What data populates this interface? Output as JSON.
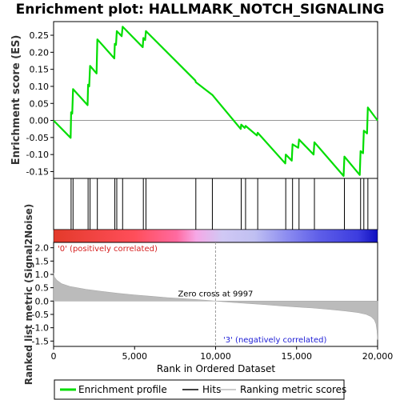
{
  "chart_data": {
    "type": "line",
    "title": "Enrichment plot: HALLMARK_NOTCH_SIGNALING",
    "xlabel": "Rank in Ordered Dataset",
    "ylabel_top": "Enrichment score (ES)",
    "ylabel_bottom": "Ranked list metric (Signal2Noise)",
    "xlim": [
      0,
      20000
    ],
    "x_ticks": [
      0,
      5000,
      10000,
      15000,
      20000
    ],
    "x_tick_labels": [
      "0",
      "5,000",
      "10,000",
      "15,000",
      "20,000"
    ],
    "es_ylim": [
      -0.17,
      0.29
    ],
    "es_ticks": [
      0.25,
      0.2,
      0.15,
      0.1,
      0.05,
      0.0,
      -0.05,
      -0.1,
      -0.15
    ],
    "es_tick_labels": [
      "0.25",
      "0.20",
      "0.15",
      "0.10",
      "0.05",
      "0.00",
      "-0.05",
      "-0.10",
      "-0.15"
    ],
    "metric_ylim": [
      -1.7,
      2.2
    ],
    "metric_ticks": [
      2.0,
      1.5,
      1.0,
      0.5,
      0.0,
      -0.5,
      -1.0,
      -1.5
    ],
    "metric_tick_labels": [
      "2.0",
      "1.5",
      "1.0",
      "0.5",
      "0.0",
      "-0.5",
      "-1.0",
      "-1.5"
    ],
    "enrichment_profile": {
      "name": "Enrichment profile",
      "color": "#00dd00",
      "x": [
        0,
        1050,
        1080,
        1150,
        1200,
        2100,
        2130,
        2200,
        2250,
        2650,
        2700,
        3750,
        3780,
        3850,
        3900,
        4200,
        4260,
        5500,
        5540,
        5650,
        5700,
        8750,
        8780,
        9800,
        11550,
        11580,
        11800,
        11850,
        12550,
        12600,
        14300,
        14330,
        14700,
        14750,
        15100,
        15150,
        16050,
        16100,
        17900,
        17950,
        18900,
        18950,
        19100,
        19150,
        19350,
        19400,
        20000
      ],
      "y": [
        0.0,
        -0.051,
        0.024,
        0.02,
        0.092,
        0.045,
        0.105,
        0.1,
        0.16,
        0.138,
        0.238,
        0.182,
        0.225,
        0.222,
        0.262,
        0.247,
        0.275,
        0.215,
        0.242,
        0.236,
        0.262,
        0.117,
        0.112,
        0.075,
        -0.025,
        -0.012,
        -0.022,
        -0.016,
        -0.044,
        -0.036,
        -0.126,
        -0.1,
        -0.118,
        -0.07,
        -0.08,
        -0.056,
        -0.1,
        -0.064,
        -0.163,
        -0.106,
        -0.16,
        -0.09,
        -0.096,
        -0.03,
        -0.038,
        0.038,
        0.0
      ]
    },
    "hits": {
      "name": "Hits",
      "x": [
        1080,
        1200,
        2130,
        2250,
        2700,
        3780,
        3900,
        4260,
        5540,
        5700,
        8780,
        9800,
        11580,
        11850,
        12600,
        14330,
        14750,
        15150,
        16100,
        17950,
        18950,
        19150,
        19400
      ]
    },
    "ranking_metric": {
      "name": "Ranking metric scores",
      "color": "#bbbbbb",
      "x": [
        0,
        50,
        200,
        500,
        1000,
        2000,
        3000,
        4000,
        5000,
        6000,
        7000,
        8000,
        9000,
        9997,
        11000,
        12000,
        13000,
        14000,
        15000,
        16000,
        17000,
        18000,
        18800,
        19300,
        19600,
        19800,
        19900,
        19960,
        20000
      ],
      "y": [
        1.05,
        0.9,
        0.78,
        0.65,
        0.55,
        0.44,
        0.36,
        0.29,
        0.23,
        0.18,
        0.13,
        0.09,
        0.05,
        0.0,
        -0.05,
        -0.09,
        -0.13,
        -0.18,
        -0.22,
        -0.26,
        -0.31,
        -0.37,
        -0.43,
        -0.5,
        -0.58,
        -0.7,
        -0.85,
        -1.1,
        -1.45
      ]
    },
    "zero_cross_label": "Zero cross at 9997",
    "zero_cross_x": 9997,
    "pos_label": "'0' (positively correlated)",
    "neg_label": "'3' (negatively correlated)",
    "gradient_colors": [
      "#e8302a",
      "#ff5060",
      "#f878c8",
      "#d8c8f0",
      "#7878f0",
      "#3838e8",
      "#1010c8"
    ],
    "legend": [
      "Enrichment profile",
      "Hits",
      "Ranking metric scores"
    ]
  }
}
